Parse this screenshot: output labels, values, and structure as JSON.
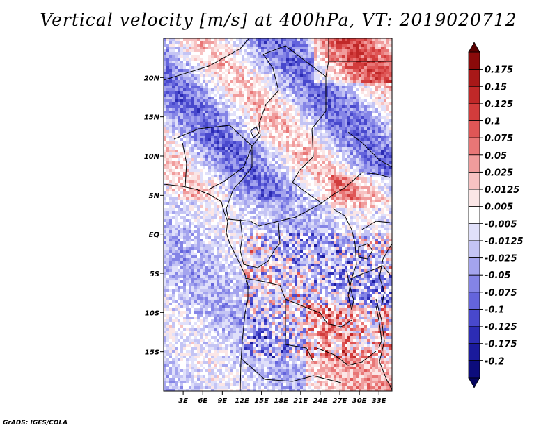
{
  "title": "Vertical velocity [m/s] at 400hPa, VT: 2019020712",
  "credit": "GrADS: IGES/COLA",
  "chart_data": {
    "type": "heatmap",
    "variable": "Vertical velocity",
    "units": "m/s",
    "level": "400hPa",
    "valid_time": "2019020712",
    "lon_range": [
      0,
      35
    ],
    "lat_range": [
      -20,
      25
    ],
    "x_ticks": [
      "3E",
      "6E",
      "9E",
      "12E",
      "15E",
      "18E",
      "21E",
      "24E",
      "27E",
      "30E",
      "33E"
    ],
    "x_tick_values": [
      3,
      6,
      9,
      12,
      15,
      18,
      21,
      24,
      27,
      30,
      33
    ],
    "y_ticks": [
      "20N",
      "15N",
      "10N",
      "5N",
      "EQ",
      "5S",
      "10S",
      "15S"
    ],
    "y_tick_values": [
      20,
      15,
      10,
      5,
      0,
      -5,
      -10,
      -15
    ],
    "colorbar": {
      "labels": [
        "0.175",
        "0.15",
        "0.125",
        "0.1",
        "0.075",
        "0.05",
        "0.025",
        "0.0125",
        "0.005",
        "-0.005",
        "-0.0125",
        "-0.025",
        "-0.05",
        "-0.075",
        "-0.1",
        "-0.125",
        "-0.175",
        "-0.2"
      ],
      "colors": [
        "#8b0a0a",
        "#a81818",
        "#c02828",
        "#d23c3c",
        "#df5656",
        "#e87676",
        "#f09c9c",
        "#f7c2c2",
        "#fbe6e6",
        "#ffffff",
        "#e0e0fa",
        "#c4c4f4",
        "#a4a4ee",
        "#8484e6",
        "#6464dc",
        "#4848cc",
        "#2c2cb4",
        "#1a1a9c",
        "#0c0c7c"
      ],
      "extend": "both"
    }
  }
}
